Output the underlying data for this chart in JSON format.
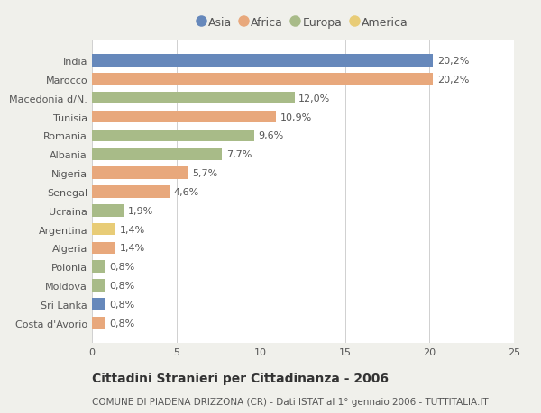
{
  "countries": [
    "India",
    "Marocco",
    "Macedonia d/N.",
    "Tunisia",
    "Romania",
    "Albania",
    "Nigeria",
    "Senegal",
    "Ucraina",
    "Argentina",
    "Algeria",
    "Polonia",
    "Moldova",
    "Sri Lanka",
    "Costa d'Avorio"
  ],
  "values": [
    20.2,
    20.2,
    12.0,
    10.9,
    9.6,
    7.7,
    5.7,
    4.6,
    1.9,
    1.4,
    1.4,
    0.8,
    0.8,
    0.8,
    0.8
  ],
  "labels": [
    "20,2%",
    "20,2%",
    "12,0%",
    "10,9%",
    "9,6%",
    "7,7%",
    "5,7%",
    "4,6%",
    "1,9%",
    "1,4%",
    "1,4%",
    "0,8%",
    "0,8%",
    "0,8%",
    "0,8%"
  ],
  "continents": [
    "Asia",
    "Africa",
    "Europa",
    "Africa",
    "Europa",
    "Europa",
    "Africa",
    "Africa",
    "Europa",
    "America",
    "Africa",
    "Europa",
    "Europa",
    "Asia",
    "Africa"
  ],
  "colors": {
    "Asia": "#6688bb",
    "Africa": "#e8a87c",
    "Europa": "#a8bb88",
    "America": "#e8cc77"
  },
  "legend_order": [
    "Asia",
    "Africa",
    "Europa",
    "America"
  ],
  "xlim": [
    0,
    25
  ],
  "xticks": [
    0,
    5,
    10,
    15,
    20,
    25
  ],
  "title": "Cittadini Stranieri per Cittadinanza - 2006",
  "subtitle": "COMUNE DI PIADENA DRIZZONA (CR) - Dati ISTAT al 1° gennaio 2006 - TUTTITALIA.IT",
  "background_color": "#f0f0eb",
  "bar_background": "#ffffff",
  "grid_color": "#d0d0d0",
  "text_color": "#555555",
  "label_fontsize": 8,
  "title_fontsize": 10,
  "subtitle_fontsize": 7.5,
  "bar_height": 0.65
}
